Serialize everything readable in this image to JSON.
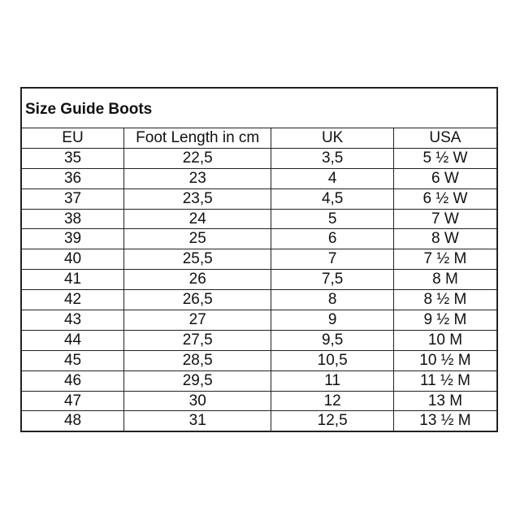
{
  "title": "Size Guide Boots",
  "headers": [
    "EU",
    "Foot Length in cm",
    "UK",
    "USA"
  ],
  "rows": [
    [
      "35",
      "22,5",
      "3,5",
      "5 ½ W"
    ],
    [
      "36",
      "23",
      "4",
      "6 W"
    ],
    [
      "37",
      "23,5",
      "4,5",
      "6 ½ W"
    ],
    [
      "38",
      "24",
      "5",
      "7 W"
    ],
    [
      "39",
      "25",
      "6",
      "8 W"
    ],
    [
      "40",
      "25,5",
      "7",
      "7 ½ M"
    ],
    [
      "41",
      "26",
      "7,5",
      "8 M"
    ],
    [
      "42",
      "26,5",
      "8",
      "8 ½ M"
    ],
    [
      "43",
      "27",
      "9",
      "9 ½ M"
    ],
    [
      "44",
      "27,5",
      "9,5",
      "10 M"
    ],
    [
      "45",
      "28,5",
      "10,5",
      "10 ½ M"
    ],
    [
      "46",
      "29,5",
      "11",
      "11 ½ M"
    ],
    [
      "47",
      "30",
      "12",
      "13 M"
    ],
    [
      "48",
      "31",
      "12,5",
      "13 ½ M"
    ]
  ]
}
